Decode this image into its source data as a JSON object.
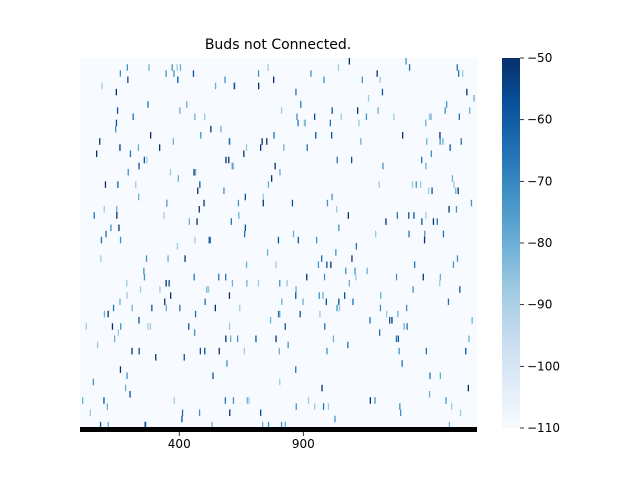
{
  "chart_data": {
    "type": "heatmap",
    "title": "Buds not Connected.",
    "xlabel": "",
    "ylabel": "",
    "x_tick_labels": [
      "400",
      "900"
    ],
    "x_tick_values": [
      400,
      900
    ],
    "x_range": [
      0,
      1600
    ],
    "colorbar": {
      "range": [
        -110,
        -50
      ],
      "tick_values": [
        -50,
        -60,
        -70,
        -80,
        -90,
        -100,
        -110
      ],
      "tick_labels": [
        "−50",
        "−60",
        "−70",
        "−80",
        "−90",
        "−100",
        "−110"
      ],
      "colormap": "Blues",
      "color_low": "#f7fbff",
      "color_high": "#08306b"
    },
    "background_value": -110,
    "grid": false
  },
  "colors": {
    "heatmap_background": "#f7fbff",
    "baseline_bar": "#000000",
    "blues_scale": [
      "#f7fbff",
      "#deebf7",
      "#c6dbef",
      "#9ecae1",
      "#6baed6",
      "#4292c6",
      "#2171b5",
      "#08519c",
      "#08306b"
    ]
  }
}
